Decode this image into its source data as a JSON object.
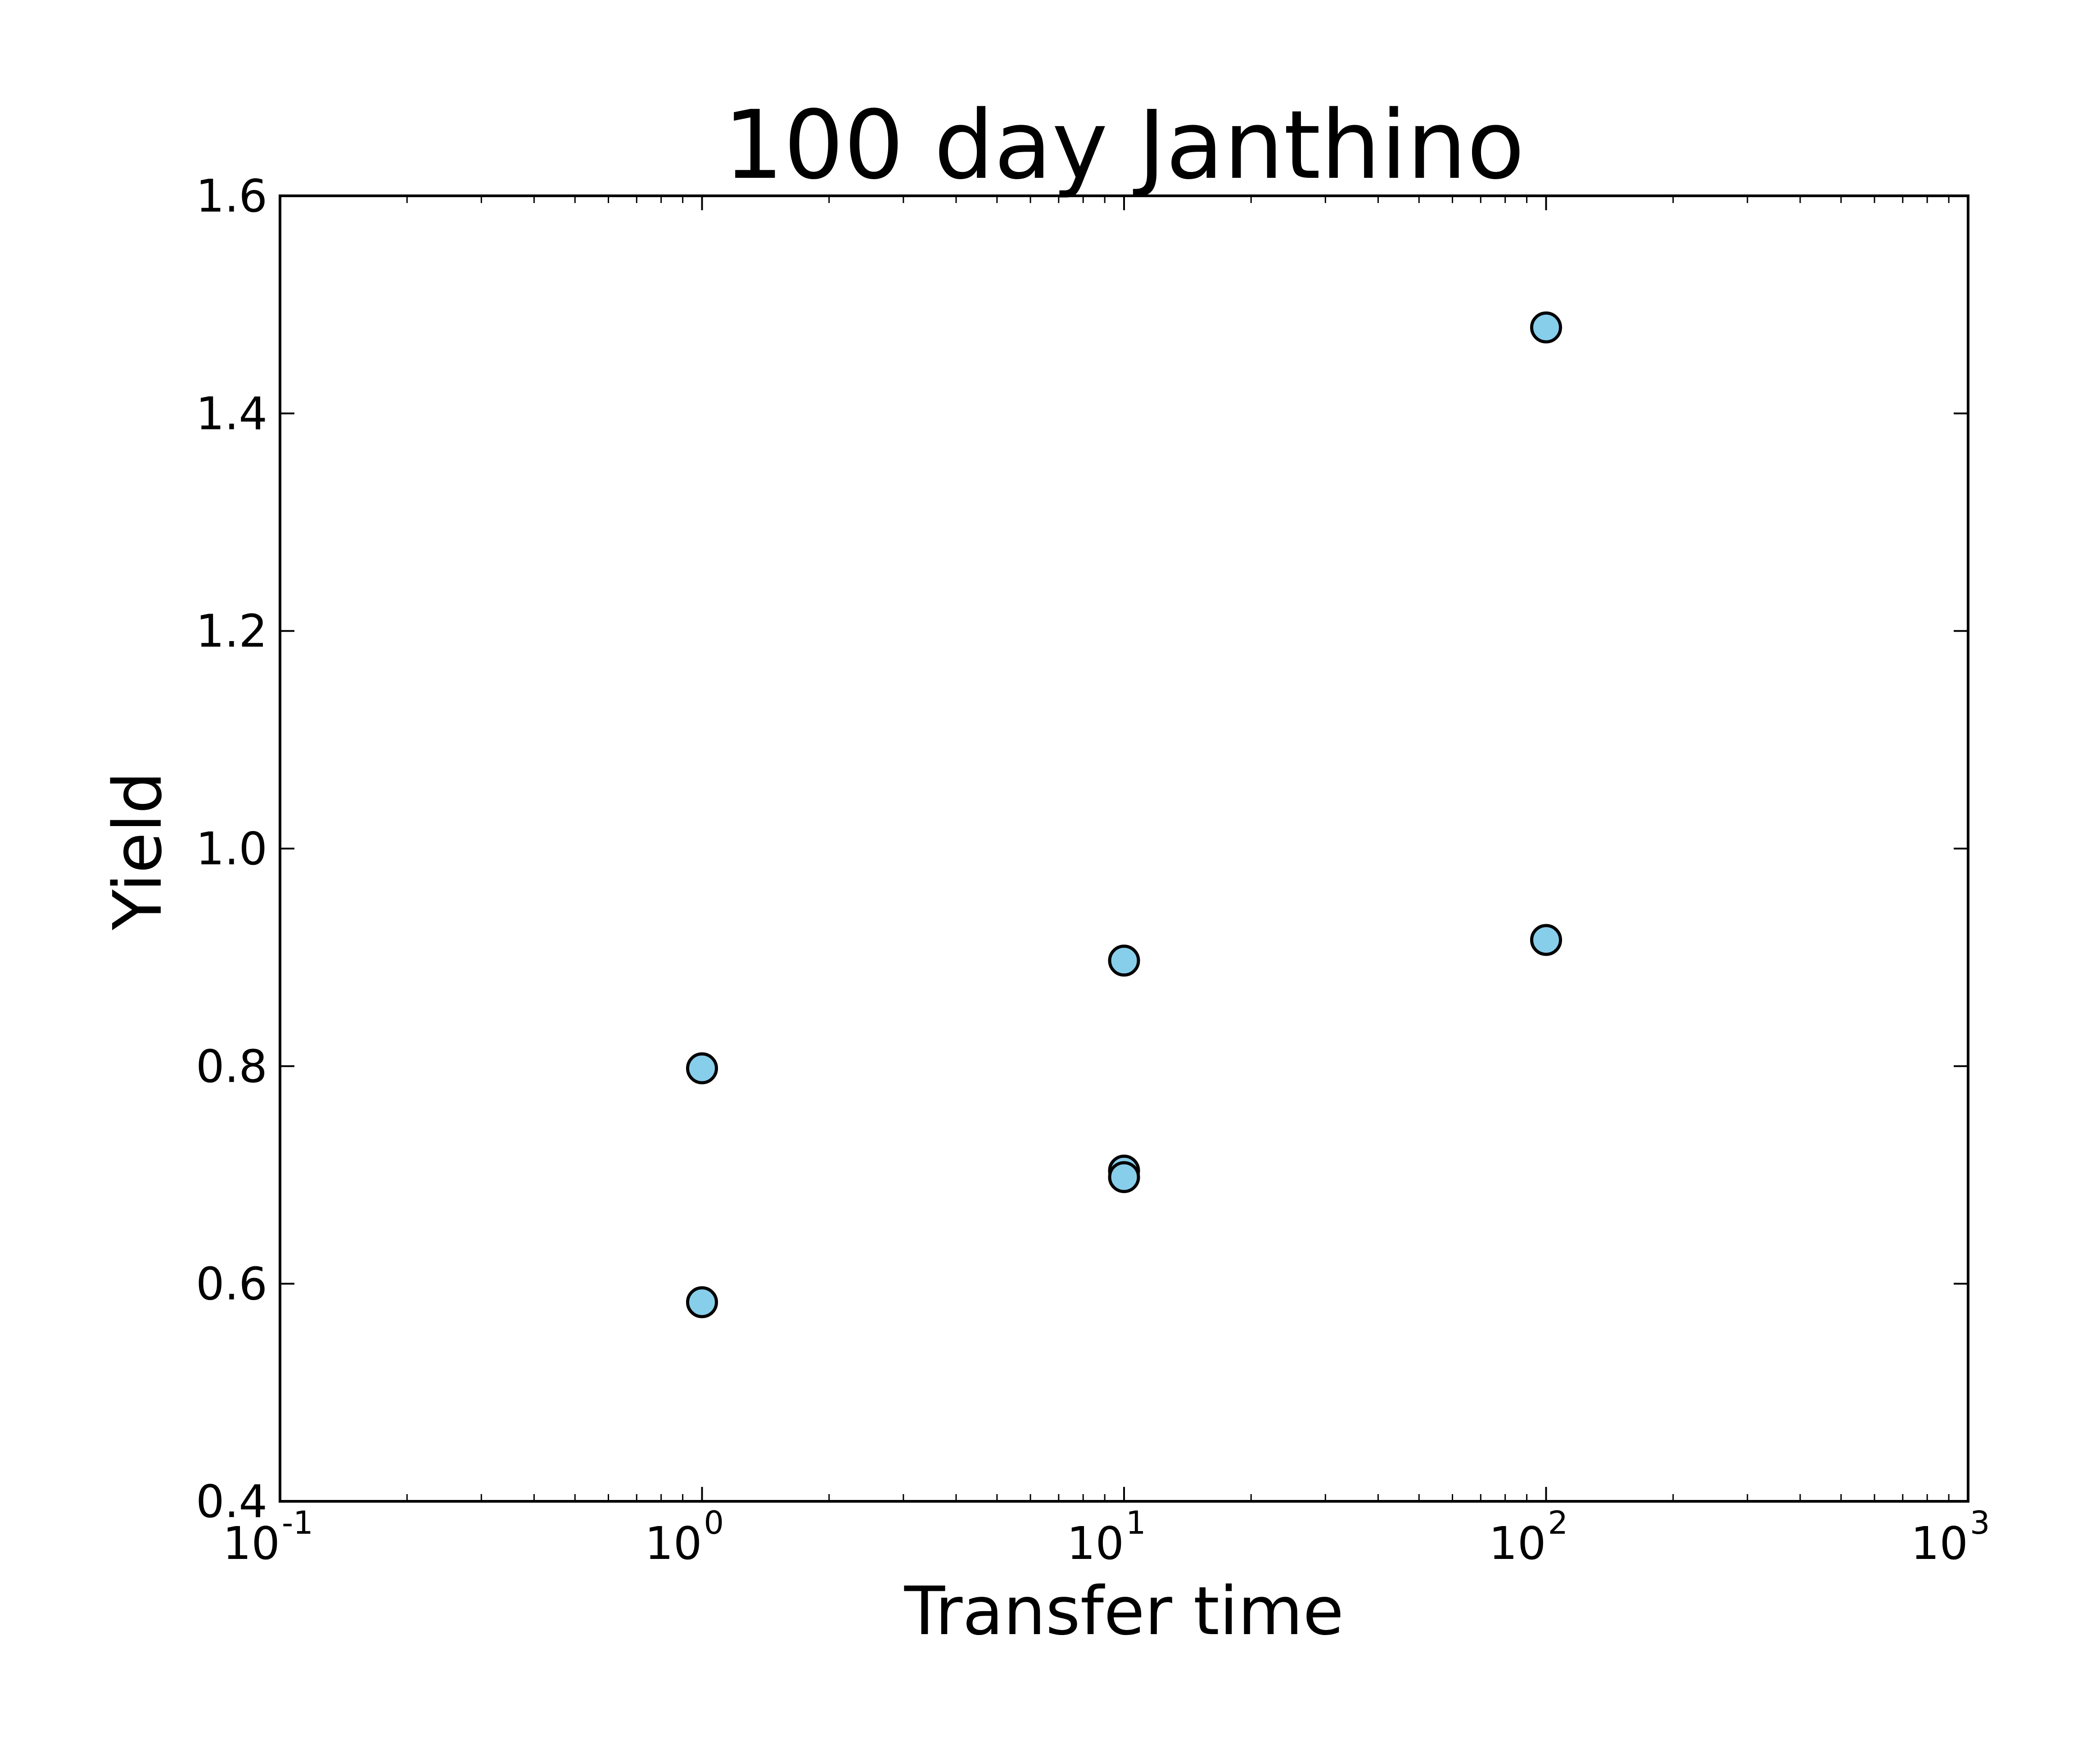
{
  "chart_data": {
    "type": "scatter",
    "title": "100 day Janthino",
    "xlabel": "Transfer time",
    "ylabel": "Yield",
    "xscale": "log",
    "xlim": [
      0.1,
      1000
    ],
    "ylim": [
      0.4,
      1.6
    ],
    "x_ticks": [
      {
        "base": "10",
        "exp": "-1"
      },
      {
        "base": "10",
        "exp": "0"
      },
      {
        "base": "10",
        "exp": "1"
      },
      {
        "base": "10",
        "exp": "2"
      },
      {
        "base": "10",
        "exp": "3"
      }
    ],
    "x_tick_values": [
      0.1,
      1,
      10,
      100,
      1000
    ],
    "y_ticks": [
      "0.4",
      "0.6",
      "0.8",
      "1.0",
      "1.2",
      "1.4",
      "1.6"
    ],
    "y_tick_values": [
      0.4,
      0.6,
      0.8,
      1.0,
      1.2,
      1.4,
      1.6
    ],
    "grid": false,
    "legend": "none",
    "marker_color": "#87ceeb",
    "marker_edge_color": "#000000",
    "series": [
      {
        "points": [
          {
            "x": 1,
            "y": 0.798
          },
          {
            "x": 1,
            "y": 0.583
          },
          {
            "x": 10,
            "y": 0.897
          },
          {
            "x": 10,
            "y": 0.704
          },
          {
            "x": 10,
            "y": 0.698
          },
          {
            "x": 100,
            "y": 1.479
          },
          {
            "x": 100,
            "y": 0.916
          }
        ]
      }
    ]
  }
}
